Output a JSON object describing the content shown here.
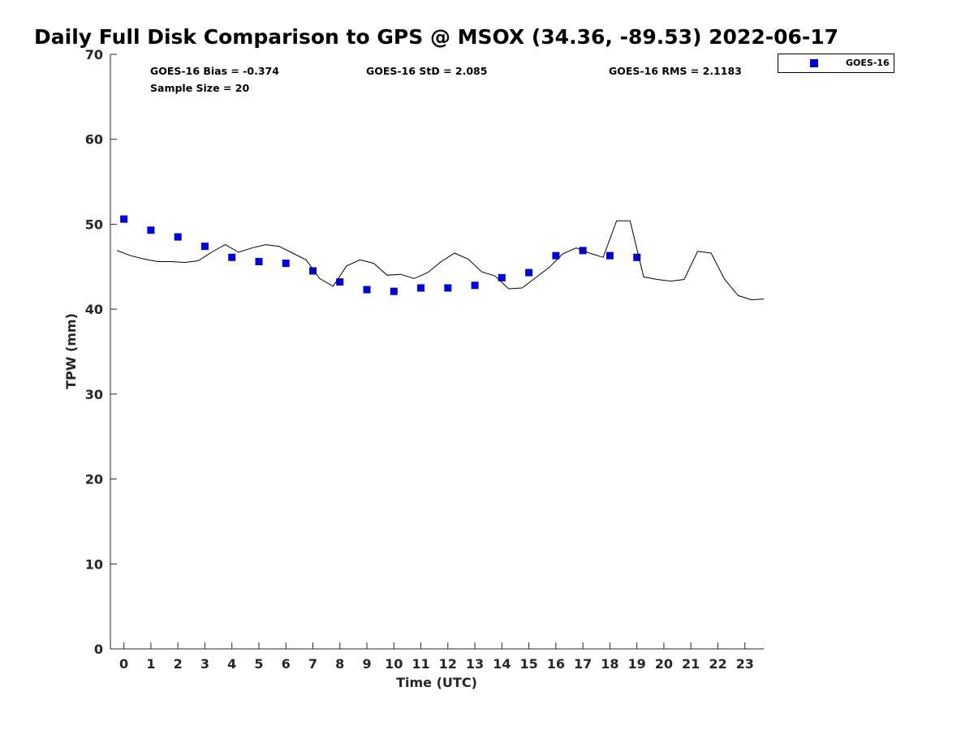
{
  "chart_data": {
    "type": "scatter",
    "title": "Daily Full Disk Comparison to GPS @ MSOX (34.36, -89.53) 2022-06-17",
    "xlabel": "Time (UTC)",
    "ylabel": "TPW (mm)",
    "xlim": [
      -0.5,
      23.7
    ],
    "ylim": [
      0,
      70
    ],
    "x_ticks": [
      "0",
      "1",
      "2",
      "3",
      "4",
      "5",
      "6",
      "7",
      "8",
      "9",
      "10",
      "11",
      "12",
      "13",
      "14",
      "15",
      "16",
      "17",
      "18",
      "19",
      "20",
      "21",
      "22",
      "23"
    ],
    "y_ticks": [
      "0",
      "10",
      "20",
      "30",
      "40",
      "50",
      "60",
      "70"
    ],
    "stats": {
      "bias": "GOES-16 Bias = -0.374",
      "sample": "Sample Size = 20",
      "std": "GOES-16 StD = 2.085",
      "rms": "GOES-16 RMS = 2.1183"
    },
    "legend": {
      "position": "outside-top-right",
      "entries": [
        "GOES-16"
      ]
    },
    "series": [
      {
        "name": "GOES-16",
        "kind": "scatter",
        "marker": "square",
        "color": "#0000dd",
        "x": [
          0,
          1,
          2,
          3,
          4,
          5,
          6,
          7,
          8,
          9,
          10,
          11,
          12,
          13,
          14,
          15,
          16,
          17,
          18,
          19
        ],
        "y": [
          50.6,
          49.3,
          48.5,
          47.4,
          46.1,
          45.6,
          45.4,
          44.5,
          43.2,
          42.3,
          42.1,
          42.5,
          42.5,
          42.8,
          43.7,
          44.3,
          46.3,
          46.9,
          46.3,
          46.1
        ]
      },
      {
        "kind": "line",
        "color": "#000000",
        "x": [
          -0.25,
          0.25,
          0.75,
          1.25,
          1.75,
          2.25,
          2.75,
          3.25,
          3.75,
          4.25,
          4.75,
          5.25,
          5.75,
          6.25,
          6.75,
          7.25,
          7.75,
          8.25,
          8.75,
          9.25,
          9.75,
          10.25,
          10.75,
          11.25,
          11.75,
          12.25,
          12.75,
          13.25,
          13.75,
          14.25,
          14.75,
          15.25,
          15.75,
          16.25,
          16.75,
          17.25,
          17.75,
          18.25,
          18.75,
          19.25,
          19.75,
          20.25,
          20.75,
          21.25,
          21.75,
          22.25,
          22.75,
          23.25,
          23.7
        ],
        "y": [
          46.9,
          46.3,
          45.9,
          45.6,
          45.6,
          45.5,
          45.7,
          46.7,
          47.6,
          46.7,
          47.2,
          47.6,
          47.4,
          46.6,
          45.8,
          43.6,
          42.7,
          45.1,
          45.8,
          45.4,
          44.0,
          44.1,
          43.6,
          44.3,
          45.6,
          46.6,
          45.9,
          44.4,
          43.9,
          42.4,
          42.5,
          43.7,
          44.9,
          46.5,
          47.2,
          46.6,
          46.1,
          50.4,
          50.4,
          43.8,
          43.5,
          43.3,
          43.5,
          46.8,
          46.6,
          43.5,
          41.6,
          41.1,
          41.2
        ]
      }
    ]
  }
}
